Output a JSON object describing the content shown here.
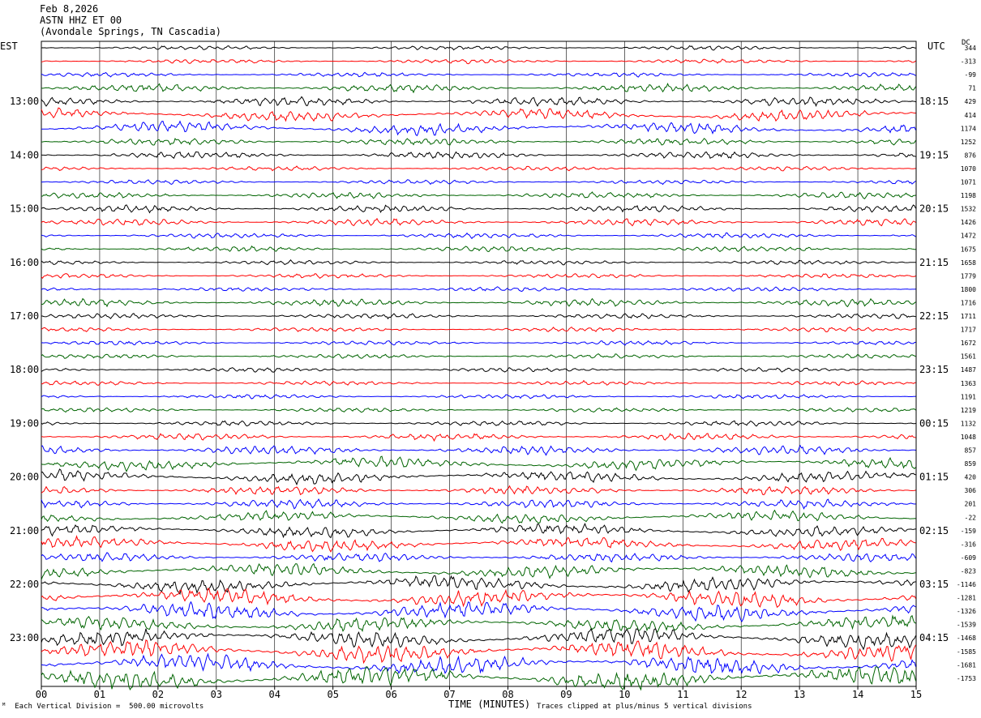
{
  "header": {
    "date": "Feb 8,2026",
    "station": "ASTN HHZ ET 00",
    "location": "(Avondale Springs, TN Cascadia)"
  },
  "left_tz": "EST",
  "right_tz": "UTC",
  "dc_label": "DC",
  "footer": {
    "left_note": "Each Vertical Division =  500.00 microvolts",
    "xlabel": "TIME (MINUTES)",
    "right_note": "Traces clipped at plus/minus 5 vertical divisions"
  },
  "colors": {
    "black": "#000000",
    "red": "#ff0000",
    "blue": "#0000ff",
    "green": "#006400"
  },
  "chart_data": {
    "type": "line",
    "xlim": [
      0,
      15
    ],
    "x_tick_labels": [
      "00",
      "01",
      "02",
      "03",
      "04",
      "05",
      "06",
      "07",
      "08",
      "09",
      "10",
      "11",
      "12",
      "13",
      "14",
      "15"
    ],
    "num_traces": 48,
    "trace_color_cycle": [
      "black",
      "red",
      "blue",
      "green"
    ],
    "left_hour_labels": [
      "13:00",
      "14:00",
      "15:00",
      "16:00",
      "17:00",
      "18:00",
      "19:00",
      "20:00",
      "21:00",
      "22:00",
      "23:00"
    ],
    "right_hour_labels": [
      "18:15",
      "19:15",
      "20:15",
      "21:15",
      "22:15",
      "23:15",
      "00:15",
      "01:15",
      "02:15",
      "03:15",
      "04:15"
    ],
    "dc_offsets": [
      "344",
      "-313",
      "-99",
      "71",
      "429",
      "414",
      "1174",
      "1252",
      "876",
      "1070",
      "1071",
      "1198",
      "1532",
      "1426",
      "1472",
      "1675",
      "1658",
      "1779",
      "1800",
      "1716",
      "1711",
      "1717",
      "1672",
      "1561",
      "1487",
      "1363",
      "1191",
      "1219",
      "1132",
      "1048",
      "857",
      "859",
      "420",
      "306",
      "201",
      "-22",
      "-159",
      "-316",
      "-609",
      "-823",
      "-1146",
      "-1281",
      "-1326",
      "-1539",
      "-1468",
      "-1585",
      "-1681",
      "-1753"
    ],
    "amplitude_per_trace": [
      0.5,
      0.5,
      0.5,
      0.9,
      1.0,
      1.2,
      1.2,
      0.8,
      0.8,
      0.5,
      0.5,
      0.7,
      0.8,
      0.8,
      0.6,
      0.6,
      0.5,
      0.5,
      0.5,
      0.8,
      0.6,
      0.5,
      0.5,
      0.5,
      0.5,
      0.5,
      0.5,
      0.5,
      0.6,
      0.8,
      1.0,
      1.2,
      1.2,
      1.0,
      1.0,
      1.1,
      1.2,
      1.3,
      1.0,
      1.4,
      1.6,
      1.8,
      1.8,
      1.6,
      1.8,
      2.0,
      2.0,
      2.2
    ]
  }
}
